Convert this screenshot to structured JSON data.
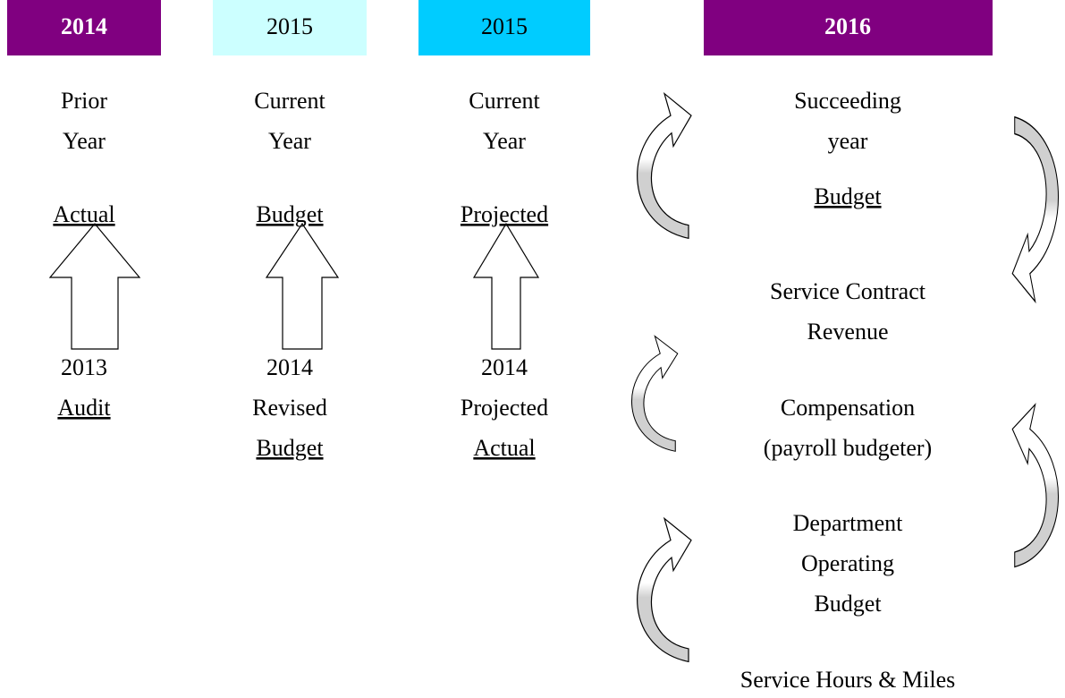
{
  "columns": [
    {
      "header": "2014",
      "top": [
        "Prior",
        "Year"
      ],
      "top_label": "Actual",
      "bottom": [
        "2013"
      ],
      "bottom_label": "Audit"
    },
    {
      "header": "2015",
      "top": [
        "Current",
        "Year"
      ],
      "top_label": "Budget",
      "bottom": [
        "2014",
        "Revised"
      ],
      "bottom_label": "Budget"
    },
    {
      "header": "2015",
      "top": [
        "Current",
        "Year"
      ],
      "top_label": "Projected",
      "bottom": [
        "2014",
        "Projected"
      ],
      "bottom_label": "Actual"
    }
  ],
  "right": {
    "header": "2016",
    "items": [
      {
        "lines": [
          "Succeeding",
          "year"
        ],
        "label": "Budget"
      },
      {
        "lines": [
          "Service Contract",
          "Revenue"
        ]
      },
      {
        "lines": [
          "Compensation",
          "(payroll budgeter)"
        ]
      },
      {
        "lines": [
          "Department",
          "Operating",
          "Budget"
        ]
      },
      {
        "lines": [
          "Service Hours & Miles"
        ]
      }
    ]
  }
}
